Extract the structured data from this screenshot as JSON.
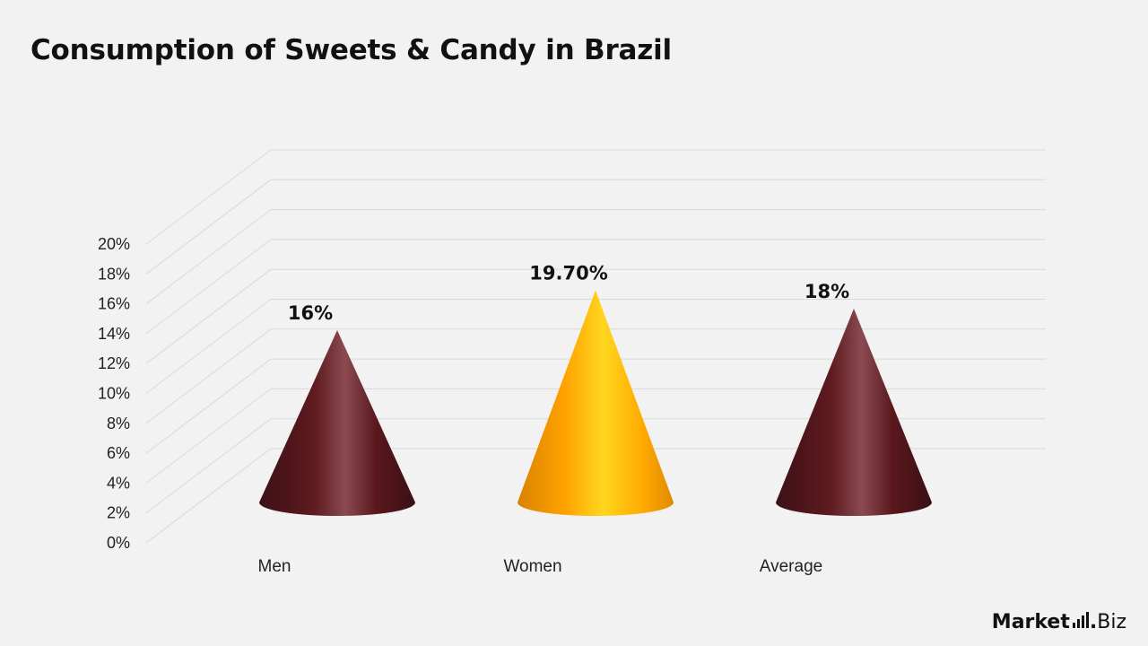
{
  "title": "Consumption of Sweets & Candy in Brazil",
  "brand": {
    "main": "Market",
    "dot": ".",
    "suffix": "Biz"
  },
  "colors": {
    "background": "#f2f2f2",
    "grid": "#d9d9d9",
    "maroon_dark": "#3d1115",
    "maroon_mid": "#6b1e24",
    "maroon_light": "#8a4a50",
    "gold_dark": "#e08a00",
    "gold_mid": "#ffa800",
    "gold_light": "#ffd11a"
  },
  "chart_data": {
    "type": "bar",
    "style": "3d-cone",
    "title": "Consumption of Sweets & Candy in Brazil",
    "categories": [
      "Men",
      "Women",
      "Average"
    ],
    "values": [
      16,
      19.7,
      18
    ],
    "data_labels": [
      "16%",
      "19.70%",
      "18%"
    ],
    "bar_colors": [
      "maroon",
      "gold",
      "maroon"
    ],
    "y_ticks": [
      "0%",
      "2%",
      "4%",
      "6%",
      "8%",
      "10%",
      "12%",
      "14%",
      "16%",
      "18%",
      "20%"
    ],
    "ylim": [
      0,
      20
    ],
    "grid": true,
    "legend": false
  }
}
